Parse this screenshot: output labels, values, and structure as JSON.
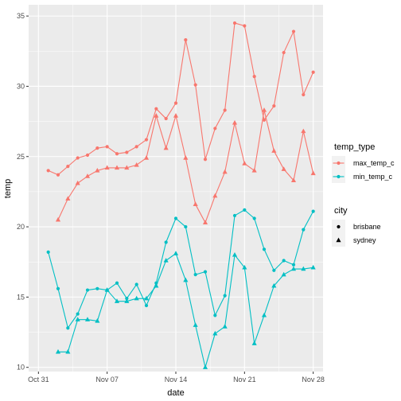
{
  "chart_data": {
    "type": "line",
    "xlabel": "date",
    "ylabel": "temp",
    "xlim": [
      "2022-10-30",
      "2022-11-29"
    ],
    "ylim": [
      9.7,
      35.8
    ],
    "x_ticks": [
      {
        "date": "2022-10-31",
        "label": "Oct 31"
      },
      {
        "date": "2022-11-07",
        "label": "Nov 07"
      },
      {
        "date": "2022-11-14",
        "label": "Nov 14"
      },
      {
        "date": "2022-11-21",
        "label": "Nov 21"
      },
      {
        "date": "2022-11-28",
        "label": "Nov 28"
      }
    ],
    "y_ticks": [
      10,
      15,
      20,
      25,
      30,
      35
    ],
    "grid": true,
    "legend_placement": "right",
    "legends": [
      {
        "title": "temp_type",
        "items": [
          {
            "label": "max_temp_c",
            "color": "#F8766D"
          },
          {
            "label": "min_temp_c",
            "color": "#00BFC4"
          }
        ]
      },
      {
        "title": "city",
        "items": [
          {
            "label": "brisbane",
            "shape": "circle"
          },
          {
            "label": "sydney",
            "shape": "triangle"
          }
        ]
      }
    ],
    "series": [
      {
        "temp_type": "max_temp_c",
        "city": "brisbane",
        "color": "#F8766D",
        "shape": "circle",
        "x": [
          "2022-11-01",
          "2022-11-02",
          "2022-11-03",
          "2022-11-04",
          "2022-11-05",
          "2022-11-06",
          "2022-11-07",
          "2022-11-08",
          "2022-11-09",
          "2022-11-10",
          "2022-11-11",
          "2022-11-12",
          "2022-11-13",
          "2022-11-14",
          "2022-11-15",
          "2022-11-16",
          "2022-11-17",
          "2022-11-18",
          "2022-11-19",
          "2022-11-20",
          "2022-11-21",
          "2022-11-22",
          "2022-11-23",
          "2022-11-24",
          "2022-11-25",
          "2022-11-26",
          "2022-11-27",
          "2022-11-28"
        ],
        "values": [
          24.0,
          23.7,
          24.3,
          24.9,
          25.1,
          25.6,
          25.7,
          25.2,
          25.3,
          25.7,
          26.2,
          28.4,
          27.7,
          28.8,
          33.3,
          30.1,
          24.8,
          27.0,
          28.3,
          34.5,
          34.3,
          30.7,
          27.6,
          28.6,
          32.4,
          33.9,
          29.4,
          31.0
        ]
      },
      {
        "temp_type": "max_temp_c",
        "city": "sydney",
        "color": "#F8766D",
        "shape": "triangle",
        "x": [
          "2022-11-02",
          "2022-11-03",
          "2022-11-04",
          "2022-11-05",
          "2022-11-06",
          "2022-11-07",
          "2022-11-08",
          "2022-11-09",
          "2022-11-10",
          "2022-11-11",
          "2022-11-12",
          "2022-11-13",
          "2022-11-14",
          "2022-11-15",
          "2022-11-16",
          "2022-11-17",
          "2022-11-18",
          "2022-11-19",
          "2022-11-20",
          "2022-11-21",
          "2022-11-22",
          "2022-11-23",
          "2022-11-24",
          "2022-11-25",
          "2022-11-26",
          "2022-11-27",
          "2022-11-28"
        ],
        "values": [
          20.5,
          22.0,
          23.1,
          23.6,
          24.0,
          24.2,
          24.2,
          24.2,
          24.4,
          24.9,
          27.9,
          25.6,
          27.9,
          24.9,
          21.6,
          20.3,
          22.2,
          23.9,
          27.4,
          24.5,
          24.0,
          28.3,
          25.4,
          24.1,
          23.3,
          26.8,
          23.8
        ]
      },
      {
        "temp_type": "min_temp_c",
        "city": "brisbane",
        "color": "#00BFC4",
        "shape": "circle",
        "x": [
          "2022-11-01",
          "2022-11-02",
          "2022-11-03",
          "2022-11-04",
          "2022-11-05",
          "2022-11-06",
          "2022-11-07",
          "2022-11-08",
          "2022-11-09",
          "2022-11-10",
          "2022-11-11",
          "2022-11-12",
          "2022-11-13",
          "2022-11-14",
          "2022-11-15",
          "2022-11-16",
          "2022-11-17",
          "2022-11-18",
          "2022-11-19",
          "2022-11-20",
          "2022-11-21",
          "2022-11-22",
          "2022-11-23",
          "2022-11-24",
          "2022-11-25",
          "2022-11-26",
          "2022-11-27",
          "2022-11-28"
        ],
        "values": [
          18.2,
          15.6,
          12.8,
          13.8,
          15.5,
          15.6,
          15.5,
          16.0,
          14.9,
          15.9,
          14.4,
          16.0,
          18.9,
          20.6,
          20.0,
          16.6,
          16.8,
          13.7,
          15.1,
          20.8,
          21.2,
          20.6,
          18.4,
          16.9,
          17.6,
          17.3,
          19.8,
          21.1
        ]
      },
      {
        "temp_type": "min_temp_c",
        "city": "sydney",
        "color": "#00BFC4",
        "shape": "triangle",
        "x": [
          "2022-11-02",
          "2022-11-03",
          "2022-11-04",
          "2022-11-05",
          "2022-11-06",
          "2022-11-07",
          "2022-11-08",
          "2022-11-09",
          "2022-11-10",
          "2022-11-11",
          "2022-11-12",
          "2022-11-13",
          "2022-11-14",
          "2022-11-15",
          "2022-11-16",
          "2022-11-17",
          "2022-11-18",
          "2022-11-19",
          "2022-11-20",
          "2022-11-21",
          "2022-11-22",
          "2022-11-23",
          "2022-11-24",
          "2022-11-25",
          "2022-11-26",
          "2022-11-27",
          "2022-11-28"
        ],
        "values": [
          11.1,
          11.1,
          13.4,
          13.4,
          13.3,
          15.5,
          14.7,
          14.7,
          14.9,
          14.9,
          15.8,
          17.6,
          18.1,
          16.2,
          13.0,
          10.0,
          12.4,
          12.9,
          18.0,
          17.1,
          11.7,
          13.7,
          15.8,
          16.6,
          17.0,
          17.0,
          17.1
        ]
      }
    ]
  }
}
